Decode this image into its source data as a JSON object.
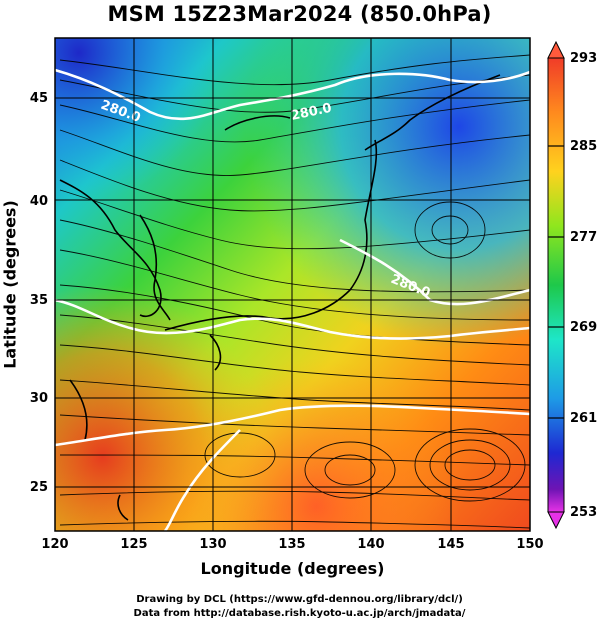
{
  "title": "MSM 15Z23Mar2024 (850.0hPa)",
  "axes": {
    "xlabel": "Longitude (degrees)",
    "ylabel": "Latitude  (degrees)",
    "x_ticks": [
      "120",
      "125",
      "130",
      "135",
      "140",
      "145",
      "150"
    ],
    "y_ticks": [
      "25",
      "30",
      "35",
      "40",
      "45"
    ]
  },
  "colorbar": {
    "labels": [
      "293",
      "285",
      "277",
      "269",
      "261",
      "253"
    ],
    "colors": [
      "#ff5a3c",
      "#ff8a1e",
      "#ffd21e",
      "#8fe61e",
      "#1ec84a",
      "#1ee6c8",
      "#1e9be6",
      "#1e46e6",
      "#3c14b4",
      "#e632e6"
    ]
  },
  "contour_labels": [
    "280.0",
    "280.0",
    "280.0"
  ],
  "credits": [
    "Drawing by DCL (https://www.gfd-dennou.org/library/dcl/)",
    "Data from http://database.rish.kyoto-u.ac.jp/arch/jmadata/"
  ],
  "chart_data": {
    "type": "heatmap",
    "title": "MSM 15Z23Mar2024 (850.0hPa)",
    "xlabel": "Longitude (degrees)",
    "ylabel": "Latitude  (degrees)",
    "xlim": [
      120,
      150
    ],
    "ylim": [
      22.4,
      47.6
    ],
    "x_ticks": [
      120,
      125,
      130,
      135,
      140,
      145,
      150
    ],
    "y_ticks": [
      25,
      30,
      35,
      40,
      45
    ],
    "colorbar_range": [
      253,
      293
    ],
    "colorbar_ticks": [
      293,
      285,
      277,
      269,
      261,
      253
    ],
    "contour_levels": [
      280.0
    ],
    "grid": true,
    "overlays": [
      "streamlines",
      "coastlines",
      "white temperature contours"
    ]
  }
}
